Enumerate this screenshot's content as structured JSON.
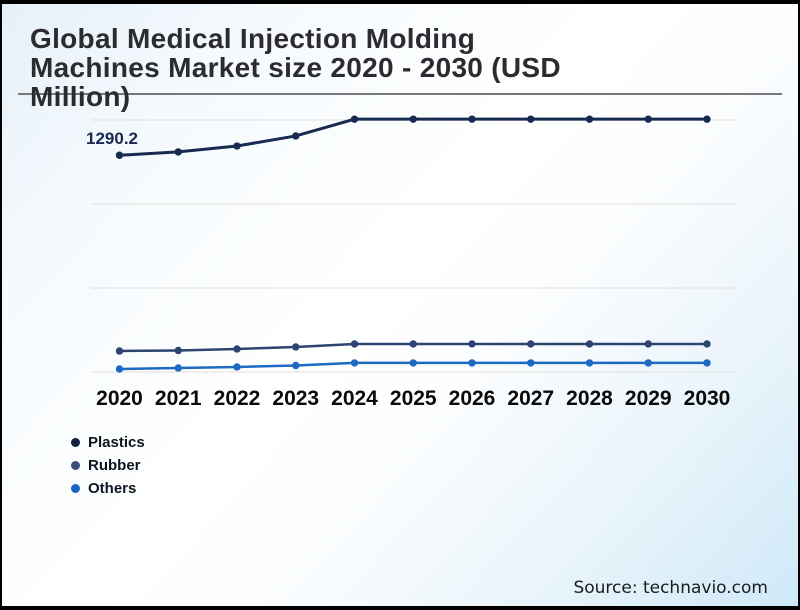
{
  "title": {
    "line1": "Global Medical Injection Molding",
    "line2": "Machines Market size 2020 - 2030 (USD",
    "line3": "Million)"
  },
  "source": {
    "text": "Source: technavio.com"
  },
  "legend": {
    "items": [
      {
        "label": "Plastics",
        "color": "#101f3d"
      },
      {
        "label": "Rubber",
        "color": "#3c4c7c"
      },
      {
        "label": "Others",
        "color": "#1a66c5"
      }
    ]
  },
  "colors": {
    "frame_border": "#000000",
    "divider": "#77787c",
    "gridline": "#e7e5e1",
    "title_text": "#2b2b30",
    "axis_text": "#0a0a0a",
    "data_label_text": "#1a2950",
    "background_top_left": "#e6f0f9",
    "background_bottom_right": "#cfe9f8"
  },
  "chart_data": {
    "type": "line",
    "title": "Global Medical Injection Molding Machines Market size 2020 - 2030 (USD Million)",
    "xlabel": "",
    "ylabel": "USD Million",
    "x": [
      "2020",
      "2021",
      "2022",
      "2023",
      "2024",
      "2025",
      "2026",
      "2027",
      "2028",
      "2029",
      "2030"
    ],
    "series": [
      {
        "name": "Plastics",
        "color": "#172a4f",
        "values": [
          1290.2,
          1310,
          1345,
          1405,
          1505,
          1505,
          1505,
          1505,
          1505,
          1505,
          1505
        ]
      },
      {
        "name": "Rubber",
        "color": "#2d4372",
        "values": [
          125,
          128,
          137,
          149,
          167,
          167,
          167,
          167,
          167,
          167,
          167
        ]
      },
      {
        "name": "Others",
        "color": "#1e6ac2",
        "values": [
          18,
          24,
          30,
          39,
          54,
          54,
          54,
          54,
          54,
          54,
          54
        ]
      }
    ],
    "ylim": [
      0,
      1600
    ],
    "grid_values": [
      0,
      500,
      1000,
      1500
    ],
    "grid": true,
    "legend_position": "bottom-left",
    "data_labels": [
      {
        "series": "Plastics",
        "x": "2020",
        "text": "1290.2"
      }
    ]
  }
}
